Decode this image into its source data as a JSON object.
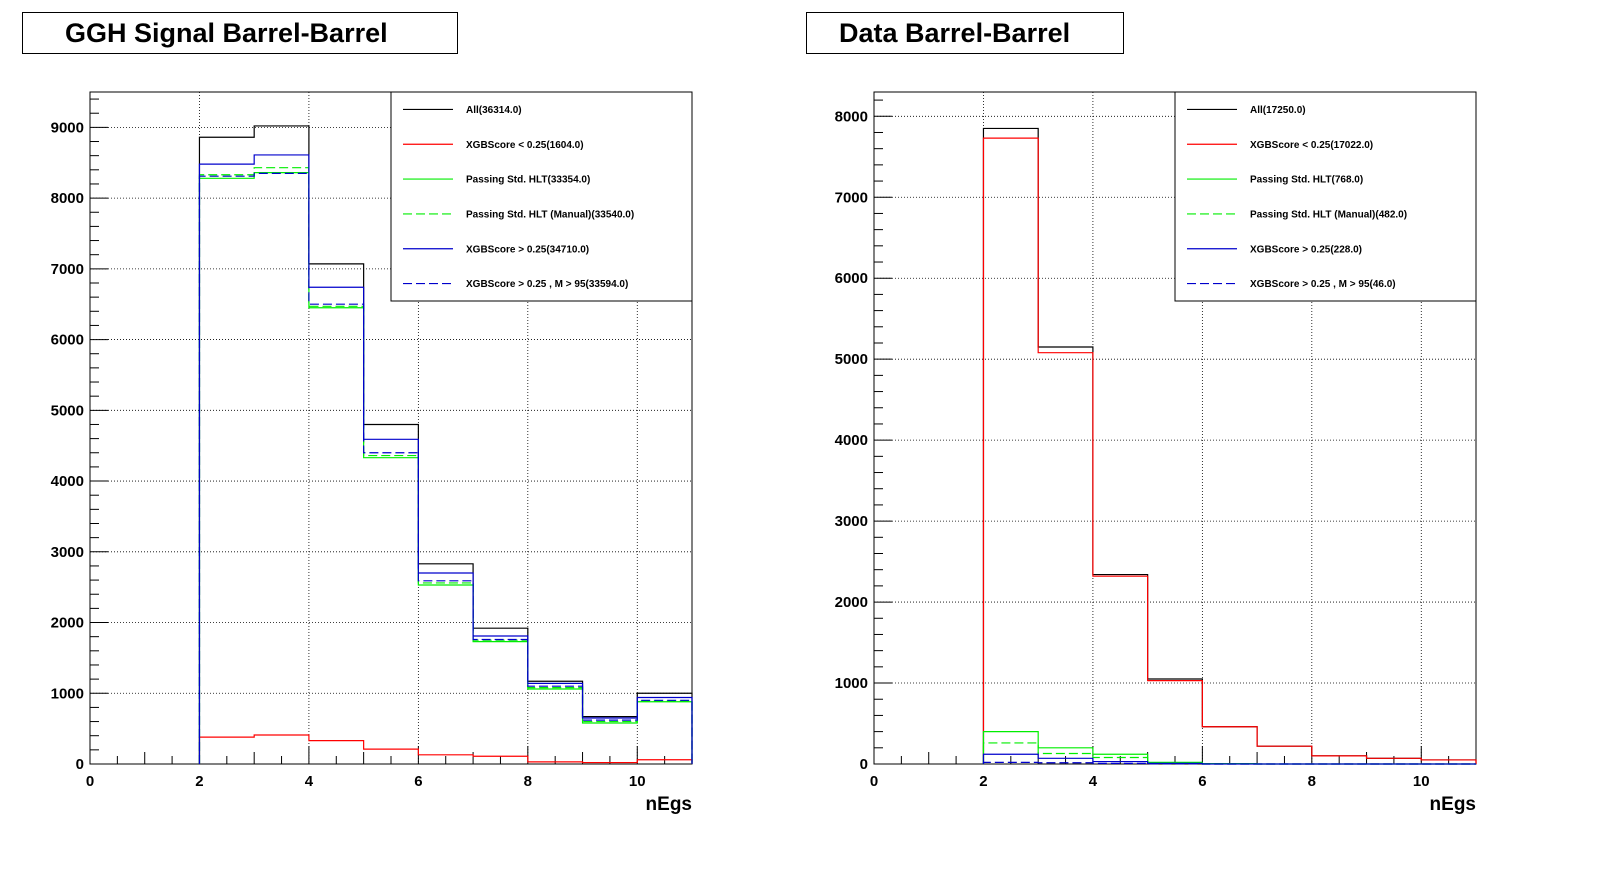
{
  "chart_data": [
    {
      "type": "line",
      "title": "GGH Signal Barrel-Barrel",
      "xlabel": "nEgs",
      "ylabel": "",
      "xlim": [
        0,
        11
      ],
      "ylim": [
        0,
        9500
      ],
      "xticks": [
        0,
        2,
        4,
        6,
        8,
        10
      ],
      "yticks": [
        0,
        1000,
        2000,
        3000,
        4000,
        5000,
        6000,
        7000,
        8000,
        9000
      ],
      "grid": true,
      "legend_position": "top-right",
      "bin_edges": [
        2,
        3,
        4,
        5,
        6,
        7,
        8,
        9,
        10,
        11
      ],
      "series": [
        {
          "name": "All(36314.0)",
          "color": "#000000",
          "dash": "solid",
          "values": [
            8860,
            9020,
            7070,
            4800,
            2830,
            1920,
            1170,
            670,
            1000
          ]
        },
        {
          "name": "XGBScore < 0.25(1604.0)",
          "color": "#ff0000",
          "dash": "solid",
          "values": [
            380,
            410,
            330,
            210,
            130,
            110,
            30,
            20,
            60
          ]
        },
        {
          "name": "Passing Std. HLT(33354.0)",
          "color": "#00ee00",
          "dash": "solid",
          "values": [
            8280,
            8360,
            6450,
            4330,
            2530,
            1730,
            1060,
            580,
            880
          ]
        },
        {
          "name": "Passing Std. HLT (Manual)(33540.0)",
          "color": "#00ee00",
          "dash": "dash",
          "values": [
            8330,
            8430,
            6470,
            4360,
            2560,
            1750,
            1080,
            600,
            890
          ]
        },
        {
          "name": "XGBScore > 0.25(34710.0)",
          "color": "#0000cc",
          "dash": "solid",
          "values": [
            8480,
            8610,
            6740,
            4590,
            2700,
            1810,
            1140,
            650,
            940
          ]
        },
        {
          "name": "XGBScore > 0.25 , M > 95(33594.0)",
          "color": "#0000cc",
          "dash": "dash",
          "values": [
            8310,
            8350,
            6500,
            4400,
            2590,
            1760,
            1100,
            620,
            900
          ]
        }
      ]
    },
    {
      "type": "line",
      "title": "Data Barrel-Barrel",
      "xlabel": "nEgs",
      "ylabel": "",
      "xlim": [
        0,
        11
      ],
      "ylim": [
        0,
        8300
      ],
      "xticks": [
        0,
        2,
        4,
        6,
        8,
        10
      ],
      "yticks": [
        0,
        1000,
        2000,
        3000,
        4000,
        5000,
        6000,
        7000,
        8000
      ],
      "grid": true,
      "legend_position": "top-right",
      "bin_edges": [
        2,
        3,
        4,
        5,
        6,
        7,
        8,
        9,
        10,
        11
      ],
      "series": [
        {
          "name": "All(17250.0)",
          "color": "#000000",
          "dash": "solid",
          "values": [
            7850,
            5150,
            2340,
            1050,
            460,
            220,
            100,
            70,
            50
          ]
        },
        {
          "name": "XGBScore < 0.25(17022.0)",
          "color": "#ff0000",
          "dash": "solid",
          "values": [
            7730,
            5080,
            2320,
            1030,
            460,
            220,
            100,
            70,
            50
          ]
        },
        {
          "name": "Passing Std. HLT(768.0)",
          "color": "#00ee00",
          "dash": "solid",
          "values": [
            400,
            200,
            120,
            20,
            5,
            0,
            0,
            0,
            0
          ]
        },
        {
          "name": "Passing Std. HLT (Manual)(482.0)",
          "color": "#00ee00",
          "dash": "dash",
          "values": [
            260,
            130,
            80,
            10,
            0,
            0,
            0,
            0,
            0
          ]
        },
        {
          "name": "XGBScore > 0.25(228.0)",
          "color": "#0000cc",
          "dash": "solid",
          "values": [
            120,
            70,
            30,
            8,
            0,
            0,
            0,
            0,
            0
          ]
        },
        {
          "name": "XGBScore > 0.25 , M > 95(46.0)",
          "color": "#0000cc",
          "dash": "dash",
          "values": [
            20,
            15,
            8,
            3,
            0,
            0,
            0,
            0,
            0
          ]
        }
      ]
    }
  ]
}
